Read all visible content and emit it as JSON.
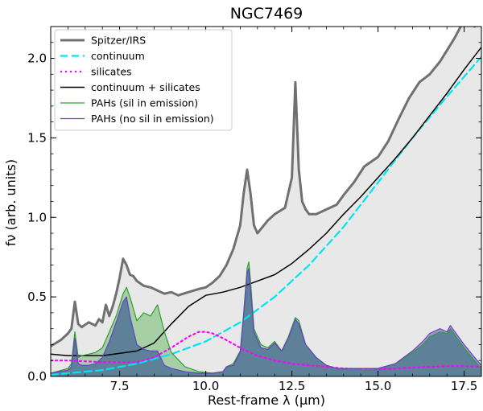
{
  "chart_data": {
    "type": "line",
    "title": "NGC7469",
    "xlabel_text": "Rest-frame λ (μm)",
    "ylabel_text": "fν (arb. units)",
    "xlim": [
      5.5,
      18.0
    ],
    "ylim": [
      0.0,
      2.2
    ],
    "xticks": [
      7.5,
      10.0,
      12.5,
      15.0,
      17.5
    ],
    "xtick_labels": [
      "7.5",
      "10.0",
      "12.5",
      "15.0",
      "17.5"
    ],
    "yticks": [
      0.0,
      0.5,
      1.0,
      1.5,
      2.0
    ],
    "ytick_labels": [
      "0.0",
      "0.5",
      "1.0",
      "1.5",
      "2.0"
    ],
    "legend_position": "top-left",
    "grid": false,
    "series": [
      {
        "name": "Spitzer/IRS",
        "style": "line",
        "color": "#707070",
        "dash": "solid",
        "fill": "#e8e8e8",
        "x": [
          5.5,
          5.8,
          6.0,
          6.1,
          6.2,
          6.3,
          6.4,
          6.6,
          6.8,
          6.9,
          7.0,
          7.1,
          7.2,
          7.3,
          7.4,
          7.5,
          7.6,
          7.7,
          7.8,
          7.9,
          8.0,
          8.2,
          8.4,
          8.6,
          8.8,
          9.0,
          9.2,
          9.5,
          9.8,
          10.0,
          10.2,
          10.4,
          10.6,
          10.8,
          11.0,
          11.1,
          11.2,
          11.3,
          11.4,
          11.5,
          11.8,
          12.0,
          12.3,
          12.5,
          12.6,
          12.7,
          12.8,
          12.9,
          13.0,
          13.2,
          13.5,
          13.8,
          14.0,
          14.3,
          14.6,
          15.0,
          15.3,
          15.6,
          15.9,
          16.2,
          16.5,
          16.8,
          17.0,
          17.2,
          17.4,
          17.6,
          17.8,
          18.0
        ],
        "y": [
          0.19,
          0.23,
          0.27,
          0.3,
          0.47,
          0.33,
          0.31,
          0.34,
          0.32,
          0.36,
          0.34,
          0.45,
          0.38,
          0.44,
          0.52,
          0.62,
          0.74,
          0.7,
          0.64,
          0.63,
          0.6,
          0.57,
          0.56,
          0.54,
          0.52,
          0.53,
          0.51,
          0.53,
          0.55,
          0.56,
          0.59,
          0.63,
          0.7,
          0.8,
          0.95,
          1.15,
          1.3,
          1.15,
          0.95,
          0.9,
          0.98,
          1.02,
          1.06,
          1.25,
          1.85,
          1.3,
          1.1,
          1.05,
          1.02,
          1.02,
          1.05,
          1.08,
          1.14,
          1.22,
          1.32,
          1.38,
          1.48,
          1.62,
          1.75,
          1.85,
          1.9,
          1.98,
          2.05,
          2.12,
          2.2,
          2.25,
          2.2,
          2.22
        ]
      },
      {
        "name": "continuum",
        "style": "line",
        "color": "#00e5ee",
        "dash": "dashed",
        "fill": "",
        "x": [
          5.5,
          6.0,
          7.0,
          8.0,
          9.0,
          10.0,
          11.0,
          12.0,
          13.0,
          14.0,
          15.0,
          16.0,
          17.0,
          18.0
        ],
        "y": [
          0.01,
          0.02,
          0.04,
          0.08,
          0.14,
          0.22,
          0.34,
          0.5,
          0.7,
          0.94,
          1.22,
          1.5,
          1.76,
          2.01
        ]
      },
      {
        "name": "silicates",
        "style": "line",
        "color": "#ff00ff",
        "dash": "dotted",
        "fill": "",
        "x": [
          5.5,
          6.0,
          7.0,
          8.0,
          8.5,
          9.0,
          9.5,
          9.8,
          10.0,
          10.2,
          10.5,
          11.0,
          11.5,
          12.0,
          12.5,
          13.0,
          13.5,
          14.0,
          14.5,
          15.0,
          15.5,
          16.0,
          16.5,
          17.0,
          17.5,
          18.0
        ],
        "y": [
          0.1,
          0.1,
          0.09,
          0.09,
          0.12,
          0.18,
          0.25,
          0.28,
          0.28,
          0.27,
          0.24,
          0.18,
          0.13,
          0.1,
          0.08,
          0.07,
          0.06,
          0.05,
          0.045,
          0.045,
          0.05,
          0.055,
          0.06,
          0.065,
          0.065,
          0.06
        ]
      },
      {
        "name": "continuum + silicates",
        "style": "line",
        "color": "#000000",
        "dash": "solid",
        "fill": "",
        "x": [
          5.5,
          6.0,
          7.0,
          8.0,
          8.5,
          9.0,
          9.5,
          10.0,
          10.5,
          11.0,
          11.5,
          12.0,
          12.5,
          13.0,
          13.5,
          14.0,
          14.5,
          15.0,
          15.5,
          16.0,
          16.5,
          17.0,
          17.5,
          18.0
        ],
        "y": [
          0.14,
          0.13,
          0.13,
          0.16,
          0.21,
          0.33,
          0.44,
          0.51,
          0.53,
          0.56,
          0.6,
          0.64,
          0.71,
          0.8,
          0.9,
          1.02,
          1.13,
          1.25,
          1.37,
          1.5,
          1.64,
          1.78,
          1.93,
          2.07
        ]
      },
      {
        "name": "PAHs (sil in emission)",
        "style": "line",
        "color": "#2ca02c",
        "dash": "solid",
        "fill": "#2ca02c",
        "x": [
          5.5,
          6.0,
          6.1,
          6.2,
          6.3,
          6.4,
          6.6,
          6.8,
          7.0,
          7.2,
          7.4,
          7.6,
          7.7,
          7.8,
          8.0,
          8.2,
          8.4,
          8.6,
          8.8,
          9.0,
          9.4,
          9.8,
          10.2,
          10.5,
          10.6,
          10.8,
          11.0,
          11.1,
          11.2,
          11.25,
          11.3,
          11.4,
          11.6,
          11.8,
          12.0,
          12.2,
          12.4,
          12.6,
          12.7,
          12.9,
          13.2,
          13.5,
          13.8,
          14.2,
          14.6,
          15.0,
          15.5,
          16.0,
          16.3,
          16.5,
          16.8,
          17.0,
          17.1,
          17.3,
          17.5,
          17.8,
          18.0
        ],
        "y": [
          0.02,
          0.05,
          0.08,
          0.28,
          0.12,
          0.13,
          0.14,
          0.15,
          0.18,
          0.28,
          0.38,
          0.52,
          0.56,
          0.5,
          0.35,
          0.4,
          0.38,
          0.45,
          0.28,
          0.15,
          0.06,
          0.03,
          0.02,
          0.03,
          0.06,
          0.08,
          0.16,
          0.4,
          0.68,
          0.72,
          0.6,
          0.3,
          0.2,
          0.18,
          0.22,
          0.16,
          0.25,
          0.37,
          0.35,
          0.2,
          0.12,
          0.07,
          0.05,
          0.05,
          0.04,
          0.05,
          0.08,
          0.15,
          0.2,
          0.25,
          0.28,
          0.27,
          0.3,
          0.24,
          0.18,
          0.1,
          0.05
        ]
      },
      {
        "name": "PAHs (no sil in emission)",
        "style": "line",
        "color": "#6a3fc8",
        "dash": "solid",
        "fill": "#6a3fc8",
        "x": [
          5.5,
          6.0,
          6.1,
          6.2,
          6.3,
          6.4,
          6.6,
          6.8,
          7.0,
          7.2,
          7.4,
          7.6,
          7.7,
          7.8,
          8.0,
          8.2,
          8.4,
          8.6,
          8.8,
          9.0,
          9.4,
          9.8,
          10.2,
          10.5,
          10.6,
          10.8,
          11.0,
          11.1,
          11.2,
          11.25,
          11.3,
          11.4,
          11.6,
          11.8,
          12.0,
          12.2,
          12.4,
          12.6,
          12.7,
          12.9,
          13.2,
          13.5,
          13.8,
          14.2,
          14.6,
          15.0,
          15.5,
          16.0,
          16.3,
          16.5,
          16.8,
          17.0,
          17.1,
          17.3,
          17.5,
          17.8,
          18.0
        ],
        "y": [
          0.02,
          0.04,
          0.06,
          0.24,
          0.08,
          0.07,
          0.07,
          0.08,
          0.12,
          0.22,
          0.34,
          0.47,
          0.5,
          0.38,
          0.2,
          0.17,
          0.16,
          0.16,
          0.07,
          0.05,
          0.03,
          0.02,
          0.02,
          0.03,
          0.06,
          0.07,
          0.15,
          0.38,
          0.65,
          0.68,
          0.55,
          0.28,
          0.18,
          0.17,
          0.21,
          0.16,
          0.24,
          0.36,
          0.33,
          0.2,
          0.12,
          0.07,
          0.05,
          0.05,
          0.05,
          0.05,
          0.08,
          0.16,
          0.22,
          0.27,
          0.3,
          0.28,
          0.32,
          0.26,
          0.2,
          0.12,
          0.07
        ]
      }
    ]
  }
}
